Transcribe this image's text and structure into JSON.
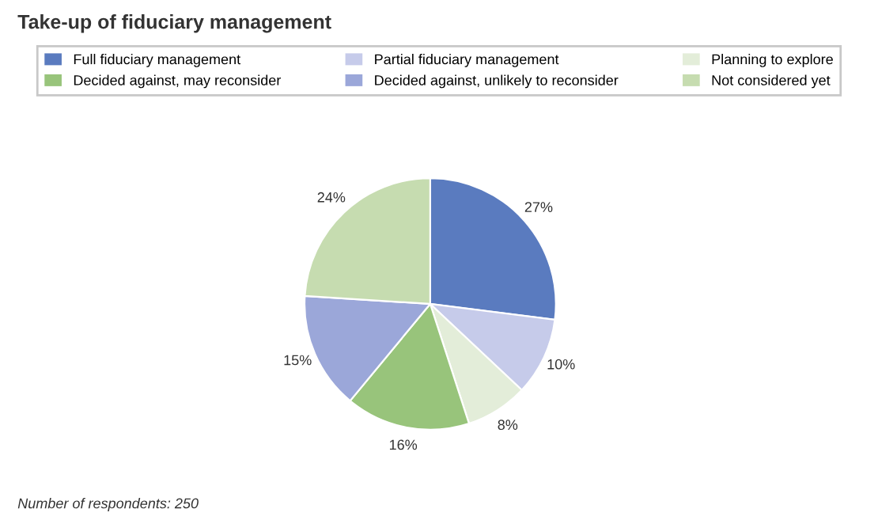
{
  "chart_data": {
    "type": "pie",
    "title": "Take-up of fiduciary management",
    "categories": [
      "Full fiduciary management",
      "Partial fiduciary management",
      "Planning to explore",
      "Decided against, may reconsider",
      "Decided against, unlikely to reconsider",
      "Not considered yet"
    ],
    "values": [
      27,
      10,
      8,
      16,
      15,
      24
    ],
    "colors": [
      "#5a7bbf",
      "#c6cbea",
      "#e3edd9",
      "#98c47b",
      "#9ba7d9",
      "#c6dcb0"
    ],
    "value_labels": [
      "27%",
      "10%",
      "8%",
      "16%",
      "15%",
      "24%"
    ],
    "legend": "top",
    "annotations": [
      "Number of respondents: 250"
    ]
  }
}
